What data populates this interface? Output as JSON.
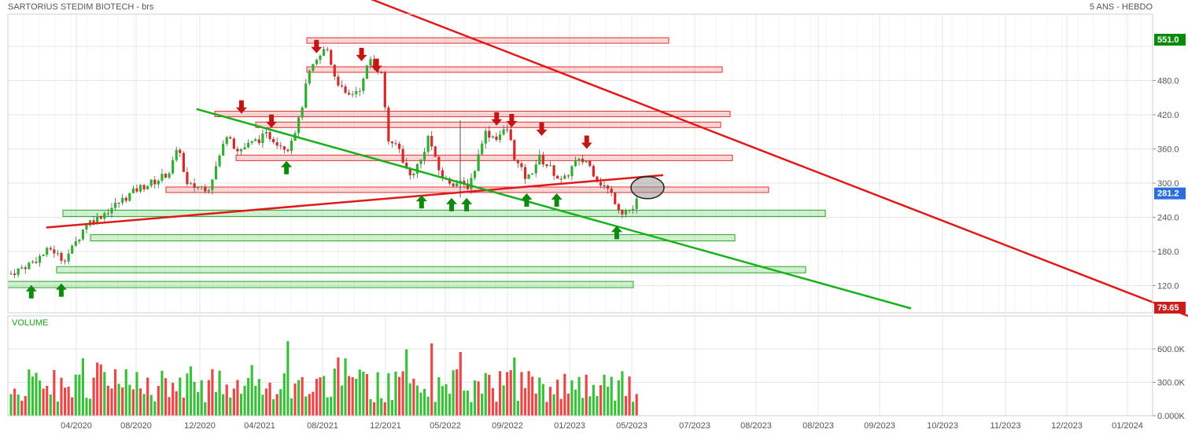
{
  "chart_data": {
    "type": "candlestick",
    "title": "SARTORIUS STEDIM BIOTECH - brs",
    "period": "5 ANS - HEBDO",
    "price_axis": {
      "ticks": [
        120.0,
        180.0,
        240.0,
        300.0,
        360.0,
        420.0,
        480.0
      ],
      "tick_labels": [
        "120.0",
        "180.0",
        "240.0",
        "300.0",
        "360.0",
        "420.0",
        "480.0"
      ],
      "ylim": [
        80,
        560
      ]
    },
    "x_axis": {
      "tick_labels": [
        "04/2020",
        "08/2020",
        "12/2020",
        "04/2021",
        "08/2021",
        "12/2021",
        "05/2022",
        "09/2022",
        "01/2023",
        "05/2023",
        "07/2023",
        "08/2023",
        "08/2023",
        "09/2023",
        "10/2023",
        "11/2023",
        "12/2023",
        "01/2024"
      ]
    },
    "price_badges": [
      {
        "label": "551.0",
        "value": 551.0,
        "color": "#0a8a0a"
      },
      {
        "label": "281.2",
        "value": 281.2,
        "color": "#2a6fdb"
      },
      {
        "label": "79.65",
        "value": 79.65,
        "color": "#c81e1e"
      }
    ],
    "resistance_levels": [
      {
        "value": 551
      },
      {
        "value": 500
      },
      {
        "value": 422
      },
      {
        "value": 403
      },
      {
        "value": 345
      },
      {
        "value": 289
      }
    ],
    "support_levels": [
      {
        "value": 247
      },
      {
        "value": 204
      },
      {
        "value": 148
      },
      {
        "value": 122
      }
    ],
    "trendlines": [
      {
        "color": "#e01a1a",
        "from": [
          "02/2020",
          222
        ],
        "to": [
          "06/2023",
          314
        ]
      },
      {
        "color": "#e01a1a",
        "from": [
          "08/2021",
          660
        ],
        "to": [
          "03/2024",
          10
        ]
      },
      {
        "color": "#19b019",
        "from": [
          "12/2020",
          430
        ],
        "to": [
          "10/2023",
          80
        ]
      }
    ],
    "annotations": {
      "down_arrows": [
        {
          "date": "03/2021",
          "price": 433
        },
        {
          "date": "05/2021",
          "price": 408
        },
        {
          "date": "08/2021",
          "price": 539
        },
        {
          "date": "11/2021",
          "price": 525
        },
        {
          "date": "12/2021",
          "price": 506
        },
        {
          "date": "08/2022",
          "price": 412
        },
        {
          "date": "09/2022",
          "price": 409
        },
        {
          "date": "11/2022",
          "price": 394
        },
        {
          "date": "02/2023",
          "price": 371
        }
      ],
      "up_arrows": [
        {
          "date": "01/2020",
          "price": 110
        },
        {
          "date": "03/2020",
          "price": 113
        },
        {
          "date": "06/2021",
          "price": 328
        },
        {
          "date": "03/2022",
          "price": 268
        },
        {
          "date": "05/2022",
          "price": 263
        },
        {
          "date": "06/2022",
          "price": 263
        },
        {
          "date": "10/2022",
          "price": 271
        },
        {
          "date": "12/2022",
          "price": 271
        },
        {
          "date": "04/2023",
          "price": 214
        }
      ],
      "highlight_circle": {
        "date": "05/2023",
        "price": 292
      }
    },
    "volume": {
      "title": "VOLUME",
      "tick_labels": [
        "600.0K",
        "300.0K",
        "0.000K"
      ],
      "ticks": [
        600000,
        300000,
        0
      ],
      "ymax": 780000
    }
  }
}
